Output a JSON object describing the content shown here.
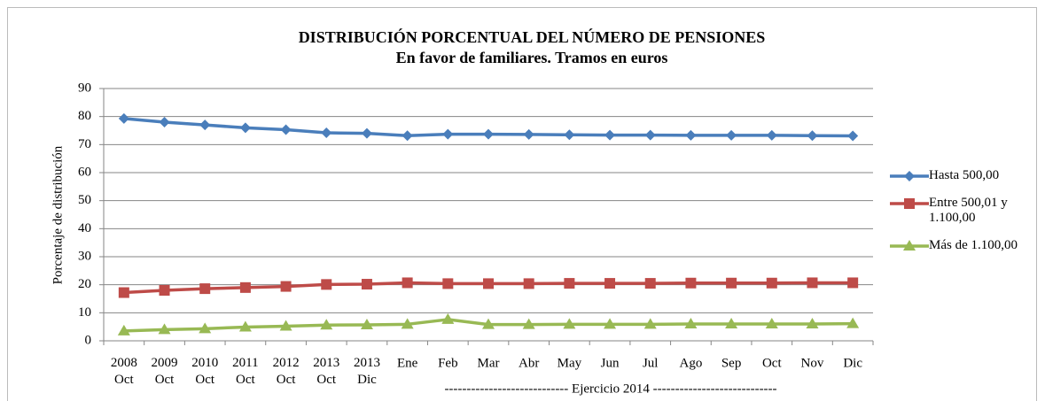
{
  "chart_data": {
    "type": "line",
    "title": "DISTRIBUCIÓN PORCENTUAL DEL NÚMERO DE PENSIONES",
    "subtitle": "En favor de familiares. Tramos en euros",
    "y_label": "Porcentaje de distribución",
    "annotation": "---------------------------- Ejercicio 2014 ----------------------------",
    "categories": [
      "2008 Oct",
      "2009 Oct",
      "2010 Oct",
      "2011 Oct",
      "2012 Oct",
      "2013 Oct",
      "2013 Dic",
      "Ene",
      "Feb",
      "Mar",
      "Abr",
      "May",
      "Jun",
      "Jul",
      "Ago",
      "Sep",
      "Oct",
      "Nov",
      "Dic"
    ],
    "series": [
      {
        "name": "Hasta 500,00",
        "color": "#4a7ebb",
        "marker": "diamond",
        "values": [
          79.3,
          78,
          77,
          76,
          75.3,
          74.2,
          74,
          73.2,
          73.7,
          73.7,
          73.6,
          73.5,
          73.4,
          73.4,
          73.3,
          73.3,
          73.3,
          73.2,
          73.1
        ]
      },
      {
        "name": "Entre 500,01 y 1.100,00",
        "color": "#be4b48",
        "marker": "square",
        "values": [
          17.2,
          18,
          18.6,
          19,
          19.4,
          20.1,
          20.2,
          20.7,
          20.4,
          20.4,
          20.4,
          20.5,
          20.5,
          20.5,
          20.6,
          20.6,
          20.6,
          20.7,
          20.7
        ]
      },
      {
        "name": "Más de 1.100,00",
        "color": "#98b954",
        "marker": "triangle",
        "values": [
          3.5,
          4,
          4.3,
          4.9,
          5.2,
          5.6,
          5.7,
          5.9,
          7.6,
          5.8,
          5.8,
          5.9,
          5.9,
          5.9,
          6,
          6,
          6,
          6,
          6.1
        ]
      }
    ],
    "ylim": [
      0,
      90
    ],
    "yticks": [
      0,
      10,
      20,
      30,
      40,
      50,
      60,
      70,
      80,
      90
    ],
    "grid": true,
    "legend": "right"
  }
}
